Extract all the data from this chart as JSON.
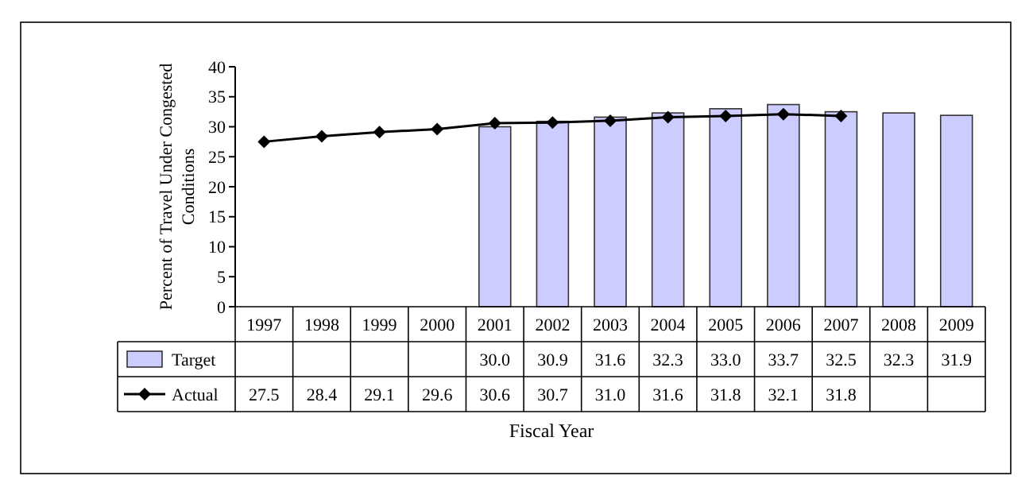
{
  "chart_data": {
    "type": "bar",
    "xlabel": "Fiscal Year",
    "ylabel": "Percent of Travel Under Congested Conditions",
    "categories": [
      "1997",
      "1998",
      "1999",
      "2000",
      "2001",
      "2002",
      "2003",
      "2004",
      "2005",
      "2006",
      "2007",
      "2008",
      "2009"
    ],
    "series": [
      {
        "name": "Target",
        "color": "#ccccff",
        "values": [
          null,
          null,
          null,
          null,
          30.0,
          30.9,
          31.6,
          32.3,
          33.0,
          33.7,
          32.5,
          32.3,
          31.9
        ],
        "value_labels": [
          null,
          null,
          null,
          null,
          "30.0",
          "30.9",
          "31.6",
          "32.3",
          "33.0",
          "33.7",
          "32.5",
          "32.3",
          "31.9"
        ]
      },
      {
        "name": "Actual",
        "type": "line",
        "color": "#000000",
        "marker": "diamond",
        "values": [
          27.5,
          28.4,
          29.1,
          29.6,
          30.6,
          30.7,
          31.0,
          31.6,
          31.8,
          32.1,
          31.8,
          null,
          null
        ],
        "value_labels": [
          "27.5",
          "28.4",
          "29.1",
          "29.6",
          "30.6",
          "30.7",
          "31.0",
          "31.6",
          "31.8",
          "32.1",
          "31.8",
          null,
          null
        ]
      }
    ],
    "ylim": [
      0,
      40
    ],
    "yticks": [
      0,
      5,
      10,
      15,
      20,
      25,
      30,
      35,
      40
    ],
    "grid": false,
    "legend": "bottom left"
  }
}
